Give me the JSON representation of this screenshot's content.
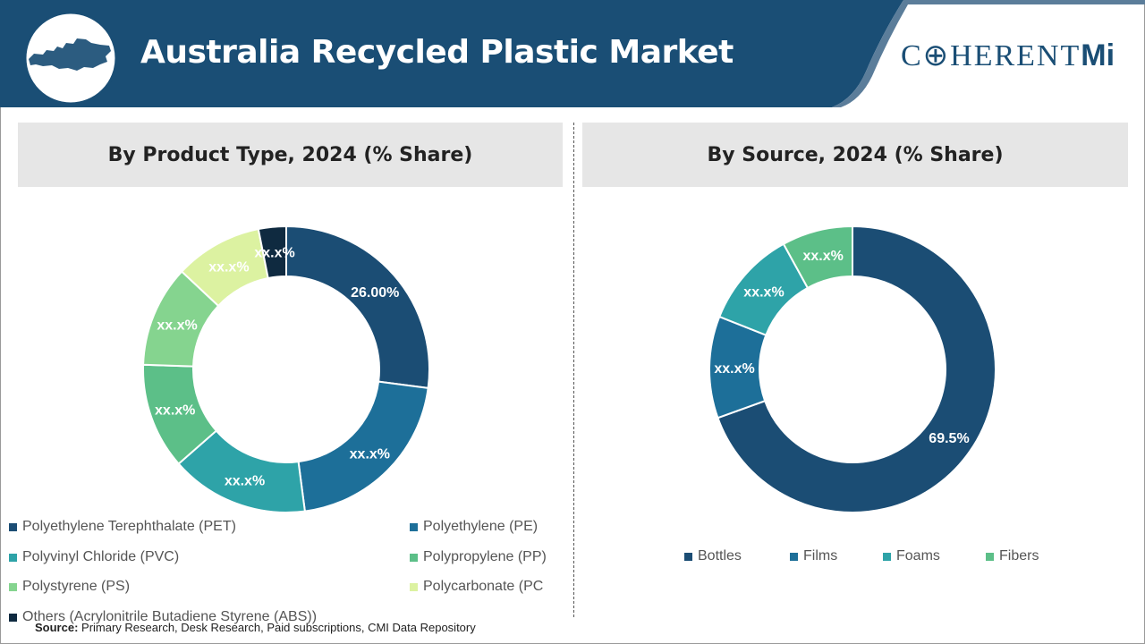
{
  "header": {
    "title": "Australia Recycled Plastic Market",
    "logo_main": "C⊕HERENT",
    "logo_mi": "Mi",
    "bg_color": "#1a4e75"
  },
  "source": {
    "label": "Source:",
    "text": "Primary Research, Desk Research, Paid subscriptions, CMI Data Repository"
  },
  "chart_data": [
    {
      "type": "pie",
      "donut": true,
      "title": "By Product Type, 2024 (% Share)",
      "categories": [
        "Polyethylene Terephthalate (PET)",
        "Polyethylene (PE)",
        "Polyvinyl Chloride (PVC)",
        "Polypropylene (PP)",
        "Polystyrene (PS)",
        "Polycarbonate (PC",
        "Others (Acrylonitrile Butadiene Styrene (ABS))"
      ],
      "values": [
        26.0,
        20.0,
        15.0,
        11.5,
        11.0,
        9.5,
        3.0
      ],
      "labels": [
        "26.00%",
        "xx.x%",
        "xx.x%",
        "xx.x%",
        "xx.x%",
        "xx.x%",
        "xx.x%"
      ],
      "colors": [
        "#1b4d74",
        "#1d6f99",
        "#2ea3a8",
        "#5cbf88",
        "#85d48f",
        "#dcf2a1",
        "#0f2a40"
      ],
      "legend": "bottom"
    },
    {
      "type": "pie",
      "donut": true,
      "title": "By Source, 2024 (% Share)",
      "categories": [
        "Bottles",
        "Films",
        "Foams",
        "Fibers"
      ],
      "values": [
        69.5,
        11.5,
        11.0,
        8.0
      ],
      "labels": [
        "69.5%",
        "xx.x%",
        "xx.x%",
        "xx.x%"
      ],
      "colors": [
        "#1b4d74",
        "#1d6f99",
        "#2ea3a8",
        "#5cbf88"
      ],
      "legend": "bottom"
    }
  ]
}
